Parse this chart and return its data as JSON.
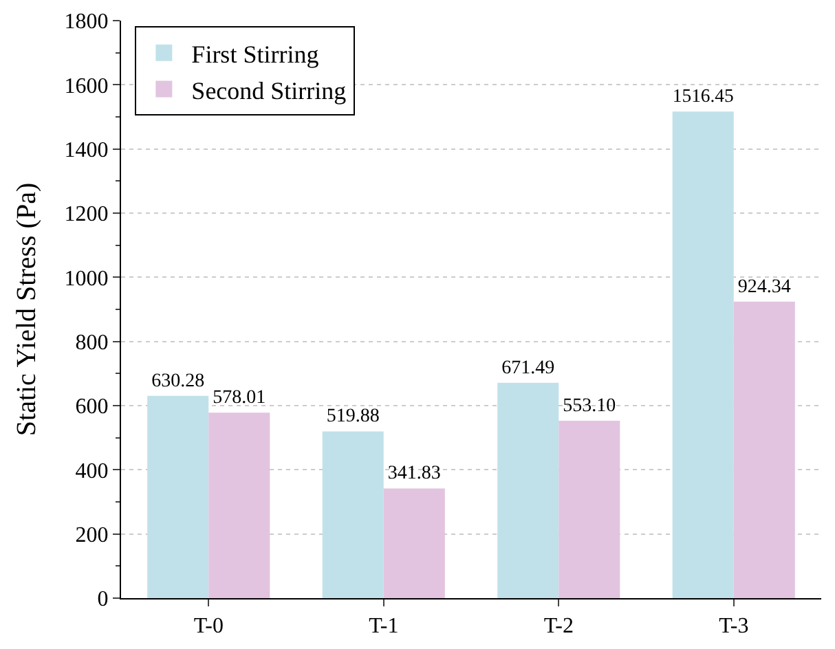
{
  "chart_data": {
    "type": "bar",
    "ylabel": "Static Yield Stress (Pa)",
    "categories": [
      "T-0",
      "T-1",
      "T-2",
      "T-3"
    ],
    "series": [
      {
        "name": "First Stirring",
        "color": "#c1e1ea",
        "values": [
          630.28,
          519.88,
          671.49,
          1516.45
        ],
        "value_labels": [
          "630.28",
          "519.88",
          "671.49",
          "1516.45"
        ]
      },
      {
        "name": "Second Stirring",
        "color": "#e2c4e0",
        "values": [
          578.01,
          341.83,
          553.1,
          924.34
        ],
        "value_labels": [
          "578.01",
          "341.83",
          "553.10",
          "924.34"
        ]
      }
    ],
    "ylim": [
      0,
      1800
    ],
    "yticks": [
      0,
      200,
      400,
      600,
      800,
      1000,
      1200,
      1400,
      1600,
      1800
    ],
    "grid": "y",
    "legend": "top left"
  }
}
